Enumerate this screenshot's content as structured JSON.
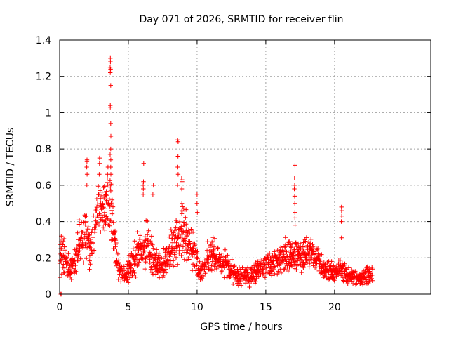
{
  "chart_data": {
    "type": "scatter",
    "title": "Day 071 of 2026, SRMTID for receiver flin",
    "xlabel": "GPS time / hours",
    "ylabel": "SRMTID / TECUs",
    "xlim": [
      0,
      27
    ],
    "ylim": [
      0,
      1.4
    ],
    "x_ticks": [
      0,
      5,
      10,
      15,
      20
    ],
    "x_tick_labels": [
      "0",
      "5",
      "10",
      "15",
      "20"
    ],
    "y_ticks": [
      0,
      0.2,
      0.4,
      0.6,
      0.8,
      1.0,
      1.2,
      1.4
    ],
    "y_tick_labels": [
      "0",
      "0.2",
      "0.4",
      "0.6",
      "0.8",
      "1",
      "1.2",
      "1.4"
    ],
    "grid": true,
    "marker": "+",
    "marker_color": "#ff0000",
    "series": [
      {
        "name": "SRMTID",
        "profile": {
          "x": [
            0.0,
            0.3,
            0.6,
            0.9,
            1.2,
            1.5,
            1.8,
            2.1,
            2.4,
            2.7,
            3.0,
            3.3,
            3.6,
            3.9,
            4.2,
            4.5,
            4.8,
            5.1,
            5.4,
            5.7,
            6.0,
            6.3,
            6.6,
            6.9,
            7.2,
            7.5,
            7.8,
            8.1,
            8.4,
            8.7,
            9.0,
            9.3,
            9.6,
            9.9,
            10.2,
            10.5,
            10.8,
            11.1,
            11.4,
            11.7,
            12.0,
            12.3,
            12.6,
            12.9,
            13.2,
            13.5,
            13.8,
            14.1,
            14.4,
            14.7,
            15.0,
            15.3,
            15.6,
            15.9,
            16.2,
            16.5,
            16.8,
            17.1,
            17.4,
            17.7,
            18.0,
            18.3,
            18.6,
            18.9,
            19.2,
            19.5,
            19.8,
            20.1,
            20.4,
            20.7,
            21.0,
            21.3,
            21.6,
            21.9,
            22.2,
            22.5,
            22.8
          ],
          "center": [
            0.18,
            0.22,
            0.15,
            0.12,
            0.2,
            0.3,
            0.36,
            0.3,
            0.25,
            0.45,
            0.5,
            0.48,
            0.52,
            0.38,
            0.15,
            0.12,
            0.1,
            0.14,
            0.2,
            0.22,
            0.24,
            0.3,
            0.22,
            0.18,
            0.16,
            0.15,
            0.2,
            0.24,
            0.28,
            0.32,
            0.34,
            0.3,
            0.26,
            0.2,
            0.12,
            0.14,
            0.2,
            0.22,
            0.2,
            0.18,
            0.17,
            0.15,
            0.12,
            0.1,
            0.1,
            0.11,
            0.08,
            0.11,
            0.13,
            0.15,
            0.16,
            0.16,
            0.17,
            0.18,
            0.2,
            0.22,
            0.21,
            0.2,
            0.22,
            0.21,
            0.23,
            0.22,
            0.2,
            0.18,
            0.14,
            0.13,
            0.12,
            0.11,
            0.14,
            0.12,
            0.1,
            0.1,
            0.09,
            0.09,
            0.1,
            0.11,
            0.11
          ],
          "spread": [
            0.08,
            0.1,
            0.07,
            0.06,
            0.1,
            0.12,
            0.14,
            0.14,
            0.12,
            0.12,
            0.12,
            0.12,
            0.14,
            0.12,
            0.08,
            0.06,
            0.05,
            0.07,
            0.09,
            0.1,
            0.1,
            0.12,
            0.1,
            0.08,
            0.07,
            0.07,
            0.08,
            0.1,
            0.11,
            0.12,
            0.12,
            0.12,
            0.1,
            0.08,
            0.05,
            0.06,
            0.08,
            0.09,
            0.08,
            0.07,
            0.07,
            0.06,
            0.05,
            0.04,
            0.04,
            0.05,
            0.04,
            0.05,
            0.05,
            0.06,
            0.06,
            0.06,
            0.06,
            0.06,
            0.07,
            0.08,
            0.07,
            0.07,
            0.07,
            0.07,
            0.07,
            0.07,
            0.06,
            0.06,
            0.05,
            0.05,
            0.05,
            0.04,
            0.05,
            0.05,
            0.04,
            0.04,
            0.03,
            0.03,
            0.04,
            0.04,
            0.04
          ]
        },
        "spikes": [
          {
            "x": 0.1,
            "values": [
              0.0,
              0.0,
              0.32
            ]
          },
          {
            "x": 2.0,
            "values": [
              0.6,
              0.66,
              0.7,
              0.73,
              0.74
            ]
          },
          {
            "x": 2.9,
            "values": [
              0.66,
              0.72,
              0.75
            ]
          },
          {
            "x": 3.5,
            "values": [
              0.6,
              0.64,
              0.66,
              0.7
            ]
          },
          {
            "x": 3.7,
            "values": [
              0.66,
              0.7,
              0.74,
              0.77,
              0.8,
              0.87,
              0.94,
              1.03,
              1.04,
              1.15,
              1.22,
              1.24,
              1.25,
              1.28,
              1.3
            ]
          },
          {
            "x": 6.1,
            "values": [
              0.55,
              0.58,
              0.6,
              0.62,
              0.72
            ]
          },
          {
            "x": 6.8,
            "values": [
              0.55,
              0.6
            ]
          },
          {
            "x": 8.6,
            "values": [
              0.6,
              0.66,
              0.7,
              0.76,
              0.84,
              0.85
            ]
          },
          {
            "x": 8.9,
            "values": [
              0.5,
              0.58,
              0.62,
              0.63,
              0.64
            ]
          },
          {
            "x": 10.0,
            "values": [
              0.45,
              0.5,
              0.55
            ]
          },
          {
            "x": 17.1,
            "values": [
              0.38,
              0.42,
              0.45,
              0.5,
              0.54,
              0.58,
              0.6,
              0.64,
              0.71
            ]
          },
          {
            "x": 20.5,
            "values": [
              0.31,
              0.4,
              0.43,
              0.46,
              0.48
            ]
          }
        ]
      }
    ]
  }
}
